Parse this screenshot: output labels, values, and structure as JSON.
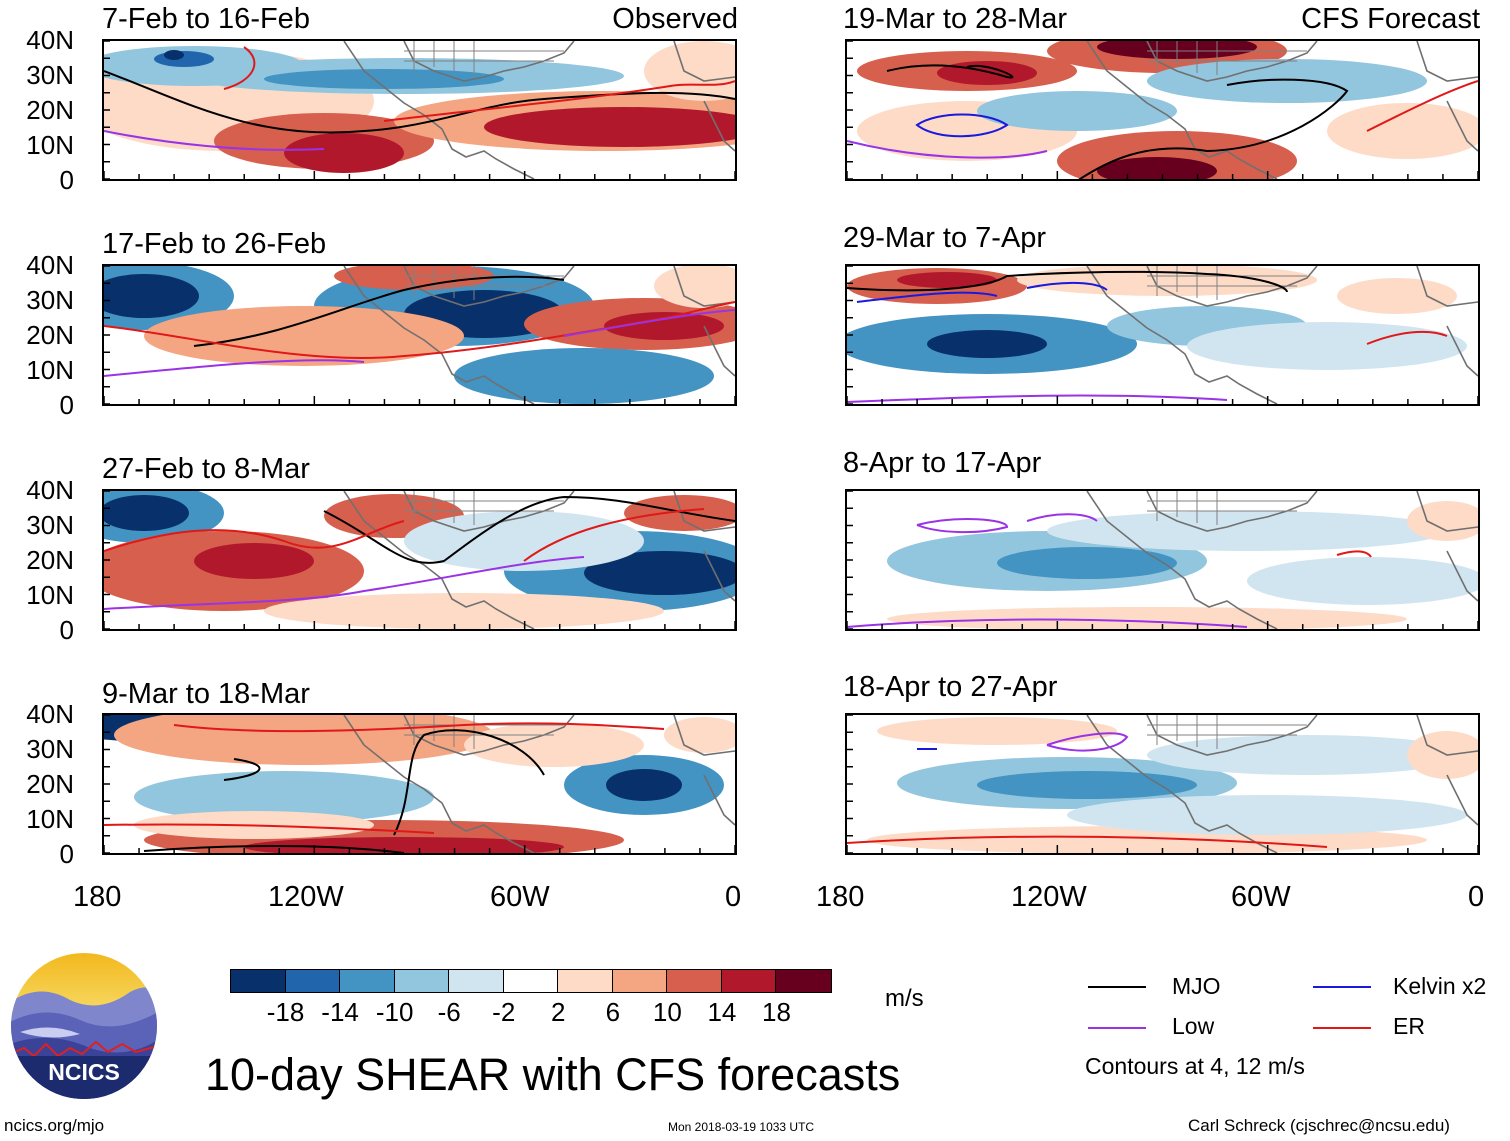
{
  "main_title": "10-day SHEAR with CFS forecasts",
  "units": "m/s",
  "footer": {
    "left": "ncics.org/mjo",
    "center": "Mon 2018-03-19 1033 UTC",
    "right": "Carl Schreck (cjschrec@ncsu.edu)"
  },
  "logo": {
    "text": "NCICS"
  },
  "contour_note": "Contours at 4, 12 m/s",
  "legend": [
    {
      "label": "MJO",
      "color": "#000000"
    },
    {
      "label": "Kelvin x2",
      "color": "#1a1adc"
    },
    {
      "label": "Low",
      "color": "#9a32e6"
    },
    {
      "label": "ER",
      "color": "#e01818"
    }
  ],
  "colorbar": {
    "colors": [
      "#08306b",
      "#2166ac",
      "#4393c3",
      "#92c5de",
      "#d1e5f0",
      "#ffffff",
      "#fddbc7",
      "#f4a582",
      "#d6604d",
      "#b2182b",
      "#67001f"
    ],
    "labels": [
      "-18",
      "-14",
      "-10",
      "-6",
      "-2",
      "2",
      "6",
      "10",
      "14",
      "18"
    ]
  },
  "chart_data": {
    "type": "heatmap",
    "variable": "10-day vertical wind shear anomaly",
    "units": "m/s",
    "lat_ticks": [
      "40N",
      "30N",
      "20N",
      "10N",
      "0"
    ],
    "lon_ticks": [
      "180",
      "120W",
      "60W",
      "0"
    ],
    "lat_range": [
      0,
      40
    ],
    "lon_range": [
      -180,
      0
    ],
    "levels": [
      -18,
      -14,
      -10,
      -6,
      -2,
      2,
      6,
      10,
      14,
      18
    ],
    "columns": [
      {
        "tag": "Observed",
        "panels": [
          {
            "period": "7-Feb to 16-Feb"
          },
          {
            "period": "17-Feb to 26-Feb"
          },
          {
            "period": "27-Feb to 8-Mar"
          },
          {
            "period": "9-Mar to 18-Mar"
          }
        ]
      },
      {
        "tag": "CFS Forecast",
        "panels": [
          {
            "period": "19-Mar to 28-Mar"
          },
          {
            "period": "29-Mar to 7-Apr"
          },
          {
            "period": "8-Apr to 17-Apr"
          },
          {
            "period": "18-Apr to 27-Apr"
          }
        ]
      }
    ]
  }
}
